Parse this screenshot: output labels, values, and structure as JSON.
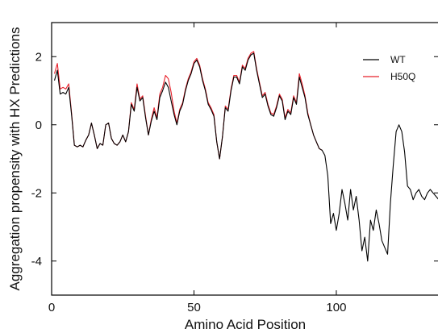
{
  "chart_data": {
    "type": "line",
    "title": "",
    "xlabel": "Amino Acid Position",
    "ylabel": "Aggregation propensity with HX Predictions",
    "xlim": [
      0,
      136
    ],
    "ylim": [
      -5,
      3
    ],
    "xticks": [
      0,
      50,
      100
    ],
    "yticks": [
      2,
      0,
      -2,
      -4
    ],
    "grid": false,
    "legend_position": "top-right",
    "series": [
      {
        "name": "WT",
        "color": "#000000",
        "x": [
          1,
          2,
          3,
          4,
          5,
          6,
          7,
          8,
          9,
          10,
          11,
          12,
          13,
          14,
          15,
          16,
          17,
          18,
          19,
          20,
          21,
          22,
          23,
          24,
          25,
          26,
          27,
          28,
          29,
          30,
          31,
          32,
          33,
          34,
          35,
          36,
          37,
          38,
          39,
          40,
          41,
          42,
          43,
          44,
          45,
          46,
          47,
          48,
          49,
          50,
          51,
          52,
          53,
          54,
          55,
          56,
          57,
          58,
          59,
          60,
          61,
          62,
          63,
          64,
          65,
          66,
          67,
          68,
          69,
          70,
          71,
          72,
          73,
          74,
          75,
          76,
          77,
          78,
          79,
          80,
          81,
          82,
          83,
          84,
          85,
          86,
          87,
          88,
          89,
          90,
          91,
          92,
          93,
          94,
          95,
          96,
          97,
          98,
          99,
          100,
          101,
          102,
          103,
          104,
          105,
          106,
          107,
          108,
          109,
          110,
          111,
          112,
          113,
          114,
          115,
          116,
          117,
          118,
          119,
          120,
          121,
          122,
          123,
          124,
          125,
          126,
          127,
          128,
          129,
          130,
          131,
          132,
          133,
          134,
          135,
          136
        ],
        "values": [
          1.3,
          1.6,
          0.9,
          0.95,
          0.9,
          1.1,
          0.3,
          -0.6,
          -0.65,
          -0.6,
          -0.65,
          -0.45,
          -0.3,
          0.05,
          -0.3,
          -0.7,
          -0.55,
          -0.6,
          0.0,
          0.05,
          -0.4,
          -0.55,
          -0.6,
          -0.5,
          -0.3,
          -0.5,
          -0.2,
          0.6,
          0.4,
          1.1,
          0.7,
          0.8,
          0.2,
          -0.3,
          0.1,
          0.4,
          0.15,
          0.8,
          1.0,
          1.25,
          1.1,
          0.7,
          0.3,
          0.0,
          0.4,
          0.6,
          1.0,
          1.3,
          1.5,
          1.8,
          1.9,
          1.7,
          1.3,
          1.0,
          0.6,
          0.45,
          0.25,
          -0.5,
          -1.0,
          -0.35,
          0.5,
          0.4,
          1.0,
          1.4,
          1.4,
          1.2,
          1.7,
          1.6,
          1.9,
          2.05,
          2.1,
          1.6,
          1.2,
          0.8,
          0.9,
          0.55,
          0.3,
          0.25,
          0.5,
          0.85,
          0.7,
          0.15,
          0.4,
          0.3,
          0.8,
          0.6,
          1.4,
          1.1,
          0.8,
          0.3,
          0.0,
          -0.3,
          -0.5,
          -0.7,
          -0.75,
          -0.9,
          -1.5,
          -2.9,
          -2.6,
          -3.1,
          -2.6,
          -1.9,
          -2.3,
          -2.8,
          -1.9,
          -2.5,
          -2.1,
          -2.8,
          -3.7,
          -3.3,
          -4.0,
          -2.8,
          -3.1,
          -2.5,
          -2.9,
          -3.4,
          -3.6,
          -3.8,
          -2.3,
          -1.2,
          -0.2,
          0.0,
          -0.2,
          -0.8,
          -1.8,
          -1.9,
          -2.2,
          -2.0,
          -1.9,
          -2.1,
          -2.2,
          -2.0,
          -1.9,
          -2.0,
          -2.1,
          -2.2
        ],
        "markers": false
      },
      {
        "name": "H50Q",
        "color": "#e8202a",
        "x": [
          1,
          2,
          3,
          4,
          5,
          6,
          7,
          8,
          9,
          10,
          11,
          12,
          13,
          14,
          15,
          16,
          17,
          18,
          19,
          20,
          21,
          22,
          23,
          24,
          25,
          26,
          27,
          28,
          29,
          30,
          31,
          32,
          33,
          34,
          35,
          36,
          37,
          38,
          39,
          40,
          41,
          42,
          43,
          44,
          45,
          46,
          47,
          48,
          49,
          50,
          51,
          52,
          53,
          54,
          55,
          56,
          57,
          58,
          59,
          60,
          61,
          62,
          63,
          64,
          65,
          66,
          67,
          68,
          69,
          70,
          71,
          72,
          73,
          74,
          75,
          76,
          77,
          78,
          79,
          80,
          81,
          82,
          83,
          84,
          85,
          86,
          87,
          88,
          89,
          90,
          91,
          92,
          93,
          94,
          95
        ],
        "values": [
          1.5,
          1.8,
          1.05,
          1.1,
          1.05,
          1.2,
          0.35,
          -0.6,
          -0.65,
          -0.6,
          -0.65,
          -0.45,
          -0.3,
          0.05,
          -0.3,
          -0.7,
          -0.55,
          -0.6,
          0.0,
          0.05,
          -0.4,
          -0.55,
          -0.6,
          -0.5,
          -0.3,
          -0.5,
          -0.2,
          0.65,
          0.45,
          1.2,
          0.75,
          0.85,
          0.25,
          -0.3,
          0.15,
          0.5,
          0.2,
          0.9,
          1.1,
          1.45,
          1.35,
          0.95,
          0.4,
          0.05,
          0.45,
          0.65,
          1.05,
          1.35,
          1.55,
          1.85,
          1.95,
          1.75,
          1.35,
          1.05,
          0.65,
          0.5,
          0.3,
          -0.5,
          -1.0,
          -0.35,
          0.55,
          0.45,
          1.05,
          1.45,
          1.45,
          1.25,
          1.75,
          1.65,
          1.95,
          2.1,
          2.15,
          1.65,
          1.25,
          0.85,
          0.95,
          0.6,
          0.35,
          0.3,
          0.55,
          0.9,
          0.75,
          0.2,
          0.45,
          0.35,
          0.85,
          0.65,
          1.5,
          1.2,
          0.85,
          0.35,
          0.0,
          -0.3,
          -0.5,
          -0.7,
          -0.75
        ],
        "markers": false
      }
    ]
  }
}
